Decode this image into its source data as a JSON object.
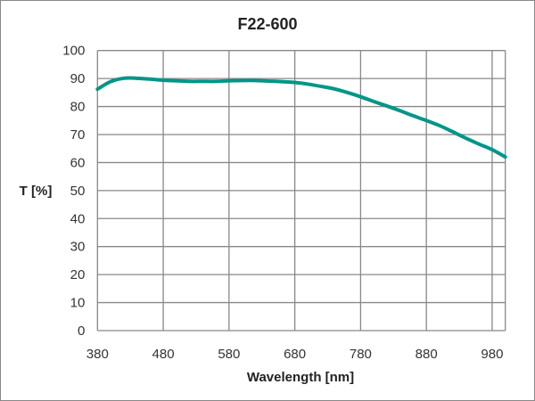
{
  "chart_data": {
    "type": "line",
    "title": "F22-600",
    "xlabel": "Wavelength [nm]",
    "ylabel": "T [%]",
    "xlim": [
      380,
      1000
    ],
    "ylim": [
      0,
      100
    ],
    "xticks": [
      380,
      480,
      580,
      680,
      780,
      880,
      980
    ],
    "yticks": [
      0,
      10,
      20,
      30,
      40,
      50,
      60,
      70,
      80,
      90,
      100
    ],
    "grid": true,
    "legend": "none",
    "colors": {
      "series": "#009688",
      "grid": "#888888"
    },
    "series": [
      {
        "x": [
          380,
          400,
          420,
          440,
          460,
          480,
          500,
          520,
          540,
          560,
          580,
          600,
          620,
          640,
          660,
          680,
          700,
          720,
          740,
          760,
          780,
          800,
          820,
          840,
          860,
          880,
          900,
          920,
          940,
          960,
          980,
          1000
        ],
        "y": [
          86.2,
          88.9,
          90.1,
          90.1,
          89.8,
          89.4,
          89.2,
          89.0,
          89.0,
          89.0,
          89.2,
          89.3,
          89.3,
          89.1,
          88.9,
          88.6,
          88.0,
          87.2,
          86.3,
          85.0,
          83.5,
          81.8,
          80.2,
          78.5,
          76.7,
          75.0,
          73.2,
          71.0,
          68.7,
          66.6,
          64.6,
          62.0
        ]
      }
    ]
  }
}
